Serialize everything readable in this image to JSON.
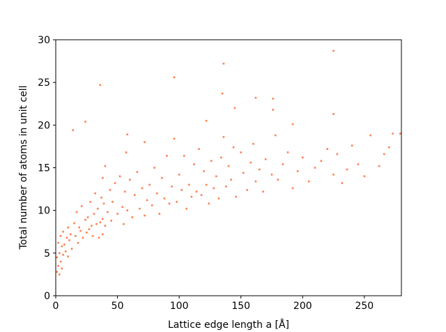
{
  "chart_data": {
    "type": "scatter",
    "x_label": "Lattice edge length a [Å]",
    "y_label": "Total number of atoms in unit cell",
    "color": "#ff7f50",
    "xlim": [
      0,
      280
    ],
    "ylim": [
      0,
      30
    ],
    "xticks": [
      0,
      50,
      100,
      150,
      200,
      250
    ],
    "yticks": [
      0,
      5,
      10,
      15,
      20,
      25,
      30
    ],
    "x": [
      1,
      1,
      2,
      2,
      3,
      3,
      4,
      4,
      5,
      5,
      6,
      6,
      7,
      8,
      9,
      10,
      10,
      11,
      12,
      13,
      15,
      16,
      17,
      18,
      19,
      20,
      21,
      22,
      24,
      25,
      26,
      27,
      28,
      29,
      30,
      31,
      32,
      33,
      34,
      35,
      36,
      37,
      38,
      38,
      38,
      39,
      40,
      40,
      42,
      44,
      45,
      46,
      48,
      50,
      52,
      54,
      55,
      56,
      57,
      58,
      60,
      62,
      64,
      66,
      68,
      70,
      72,
      72,
      74,
      76,
      78,
      80,
      82,
      84,
      86,
      88,
      90,
      92,
      94,
      96,
      98,
      100,
      102,
      104,
      106,
      108,
      110,
      112,
      114,
      116,
      118,
      120,
      122,
      124,
      126,
      128,
      130,
      132,
      134,
      136,
      138,
      140,
      142,
      144,
      146,
      150,
      152,
      155,
      158,
      160,
      162,
      165,
      168,
      170,
      175,
      178,
      180,
      184,
      188,
      192,
      196,
      200,
      205,
      210,
      215,
      220,
      225,
      228,
      232,
      236,
      240,
      245,
      250,
      255,
      262,
      266,
      270,
      273,
      279,
      14,
      24,
      36,
      96,
      136,
      135,
      145,
      162,
      176,
      122,
      192,
      58,
      225,
      225,
      176
    ],
    "values": [
      2.8,
      4.5,
      3.5,
      6.2,
      2.5,
      5.0,
      4.0,
      7.0,
      3.2,
      5.8,
      4.8,
      7.5,
      6.0,
      5.2,
      6.8,
      4.6,
      8.0,
      6.5,
      7.2,
      5.5,
      8.5,
      7.0,
      9.8,
      6.2,
      8.0,
      7.6,
      10.5,
      6.8,
      8.9,
      7.4,
      9.2,
      7.8,
      11.0,
      8.2,
      7.0,
      9.6,
      12.0,
      8.4,
      10.2,
      6.8,
      8.6,
      11.5,
      13.8,
      9.0,
      7.2,
      10.8,
      15.2,
      8.2,
      9.8,
      12.4,
      8.8,
      11.0,
      13.2,
      9.6,
      14.0,
      10.4,
      8.4,
      12.2,
      16.8,
      10.0,
      13.6,
      9.2,
      11.8,
      14.5,
      10.2,
      12.6,
      18.0,
      9.4,
      11.2,
      13.0,
      10.6,
      15.0,
      12.0,
      9.6,
      13.8,
      11.4,
      16.4,
      10.8,
      12.8,
      18.4,
      11.0,
      14.2,
      12.4,
      16.4,
      10.2,
      13.0,
      11.6,
      15.4,
      12.2,
      17.2,
      11.8,
      14.6,
      13.0,
      10.8,
      15.8,
      12.6,
      14.0,
      11.4,
      16.2,
      18.6,
      12.8,
      15.2,
      13.6,
      17.4,
      11.6,
      16.8,
      14.4,
      12.4,
      15.6,
      17.8,
      13.4,
      14.8,
      12.2,
      16.0,
      14.2,
      18.8,
      13.6,
      15.4,
      16.8,
      12.6,
      14.6,
      16.2,
      13.4,
      15.0,
      15.8,
      17.2,
      14.2,
      16.6,
      13.2,
      14.8,
      17.6,
      15.4,
      14.0,
      18.8,
      15.2,
      16.6,
      17.4,
      19.0,
      19.0,
      19.4,
      20.4,
      24.7,
      25.6,
      27.2,
      23.7,
      22.0,
      23.2,
      23.1,
      20.5,
      20.1,
      18.9,
      28.7,
      21.3,
      21.8
    ]
  }
}
